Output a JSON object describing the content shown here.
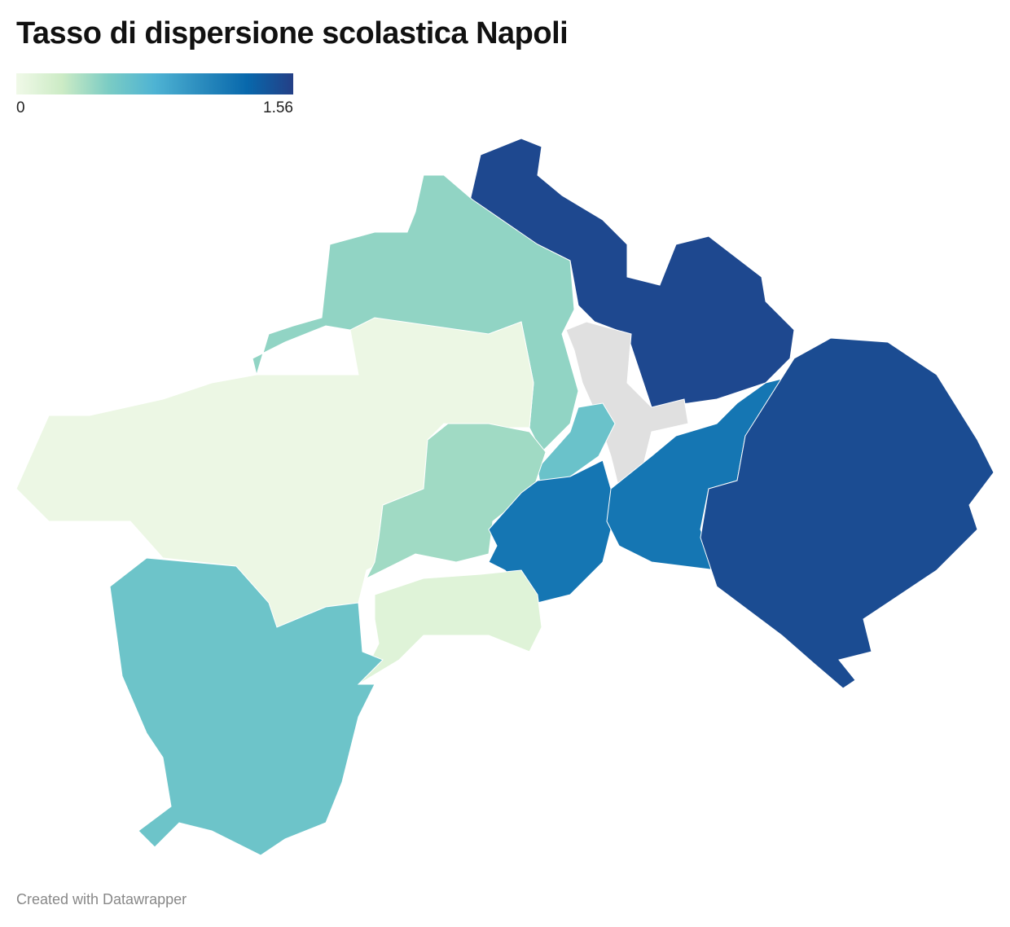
{
  "chart_data": {
    "type": "choropleth",
    "title": "Tasso di dispersione scolastica Napoli",
    "legend": {
      "min": 0,
      "max": 1.56
    },
    "colors": [
      "#f0f9e8",
      "#ccebc5",
      "#7bccc4",
      "#4eb3d3",
      "#2b8cbe",
      "#0868ac",
      "#243f86"
    ],
    "null_color": "#e0e0e0",
    "values": [
      1.5,
      0.45,
      0.03,
      null,
      0.62,
      0.4,
      1.2,
      1.2,
      1.48,
      0.12,
      0.6
    ],
    "footer": "Created with Datawrapper"
  }
}
